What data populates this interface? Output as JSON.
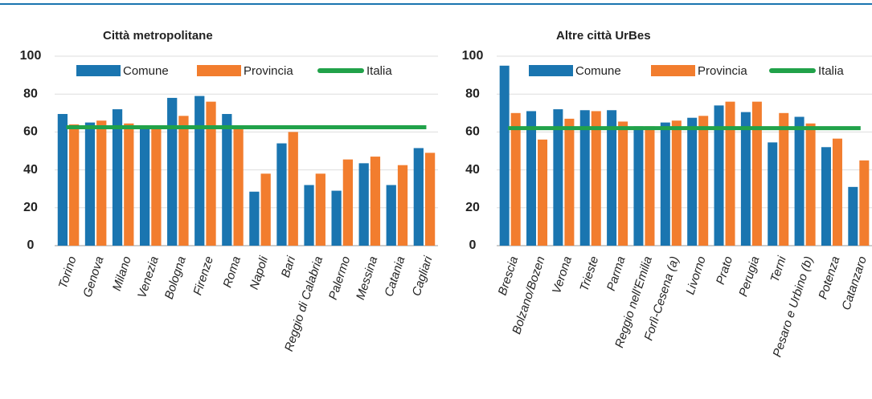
{
  "chart_data": [
    {
      "type": "bar",
      "title": "Città metropolitane",
      "categories": [
        "Torino",
        "Genova",
        "Milano",
        "Venezia",
        "Bologna",
        "Firenze",
        "Roma",
        "Napoli",
        "Bari",
        "Reggio di Calabria",
        "Palermo",
        "Messina",
        "Catania",
        "Cagliari"
      ],
      "series": [
        {
          "name": "Comune",
          "color": "#1a75b0",
          "values": [
            69.5,
            65,
            72,
            62,
            78,
            79,
            69.5,
            28.5,
            54,
            32,
            29,
            43.5,
            32,
            51.5
          ]
        },
        {
          "name": "Provincia",
          "color": "#f27d2e",
          "values": [
            64,
            66,
            64.5,
            61.5,
            68.5,
            76,
            62,
            38,
            60,
            38,
            45.5,
            47,
            42.5,
            49
          ]
        },
        {
          "name": "Italia",
          "color": "#21a24a",
          "type": "line",
          "values": [
            62.5,
            62.5,
            62.5,
            62.5,
            62.5,
            62.5,
            62.5,
            62.5,
            62.5,
            62.5,
            62.5,
            62.5,
            62.5,
            62.5
          ]
        }
      ],
      "ylim": [
        0,
        100
      ],
      "yticks": [
        0,
        20,
        40,
        60,
        80,
        100
      ],
      "grid": true
    },
    {
      "type": "bar",
      "title": "Altre città UrBes",
      "categories": [
        "Brescia",
        "Bolzano/Bozen",
        "Verona",
        "Trieste",
        "Parma",
        "Reggio nell'Emilia",
        "Forlì-Cesena (a)",
        "Livorno",
        "Prato",
        "Perugia",
        "Terni",
        "Pesaro e Urbino (b)",
        "Potenza",
        "Catanzaro"
      ],
      "series": [
        {
          "name": "Comune",
          "color": "#1a75b0",
          "values": [
            95,
            71,
            72,
            71.5,
            71.5,
            63,
            65,
            67.5,
            74,
            70.5,
            54.5,
            68,
            52,
            31
          ]
        },
        {
          "name": "Provincia",
          "color": "#f27d2e",
          "values": [
            70,
            56,
            67,
            71,
            65.5,
            63,
            66,
            68.5,
            76,
            76,
            70,
            64.5,
            56.5,
            45
          ]
        },
        {
          "name": "Italia",
          "color": "#21a24a",
          "type": "line",
          "values": [
            62,
            62,
            62,
            62,
            62,
            62,
            62,
            62,
            62,
            62,
            62,
            62,
            62,
            62
          ]
        }
      ],
      "ylim": [
        0,
        100
      ],
      "yticks": [
        0,
        20,
        40,
        60,
        80,
        100
      ],
      "grid": true
    }
  ]
}
